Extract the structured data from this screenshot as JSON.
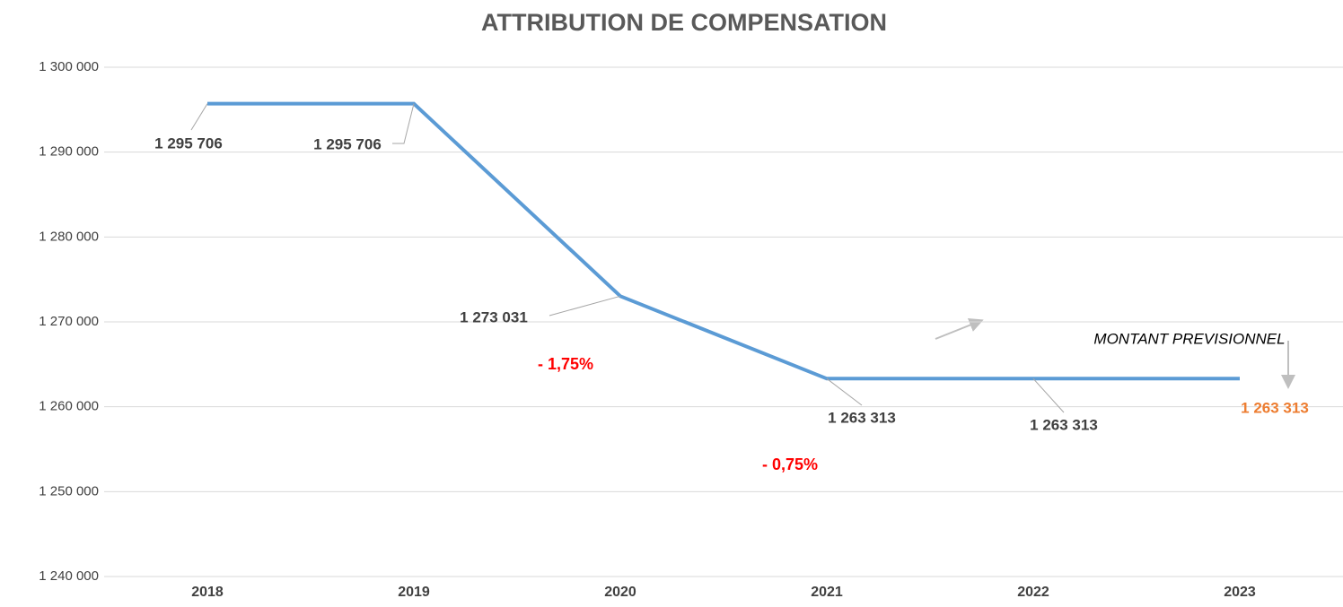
{
  "chart_data": {
    "type": "line",
    "title": "ATTRIBUTION DE COMPENSATION",
    "categories": [
      "2018",
      "2019",
      "2020",
      "2021",
      "2022",
      "2023"
    ],
    "series": [
      {
        "color": "#5b9bd5",
        "values": [
          1295706,
          1295706,
          1273031,
          1263313,
          1263313,
          1263313
        ],
        "value_labels": [
          "1 295 706",
          "1 295 706",
          "1 273 031",
          "1 263 313",
          "1 263 313",
          "1 263 313"
        ],
        "value_label_colors": [
          "#404040",
          "#404040",
          "#404040",
          "#404040",
          "#404040",
          "#ed7d31"
        ]
      }
    ],
    "ylim": [
      1240000,
      1300000
    ],
    "yticks": [
      {
        "value": 1240000,
        "label": "1 240 000"
      },
      {
        "value": 1250000,
        "label": "1 250 000"
      },
      {
        "value": 1260000,
        "label": "1 260 000"
      },
      {
        "value": 1270000,
        "label": "1 270 000"
      },
      {
        "value": 1280000,
        "label": "1 280 000"
      },
      {
        "value": 1290000,
        "label": "1 290 000"
      },
      {
        "value": 1300000,
        "label": "1 300 000"
      }
    ],
    "grid": true,
    "annotations": [
      {
        "text": "- 1,75%",
        "color": "#ff0000"
      },
      {
        "text": "- 0,75%",
        "color": "#ff0000"
      },
      {
        "text": "MONTANT PREVISIONNEL",
        "color": "#000000"
      }
    ]
  }
}
